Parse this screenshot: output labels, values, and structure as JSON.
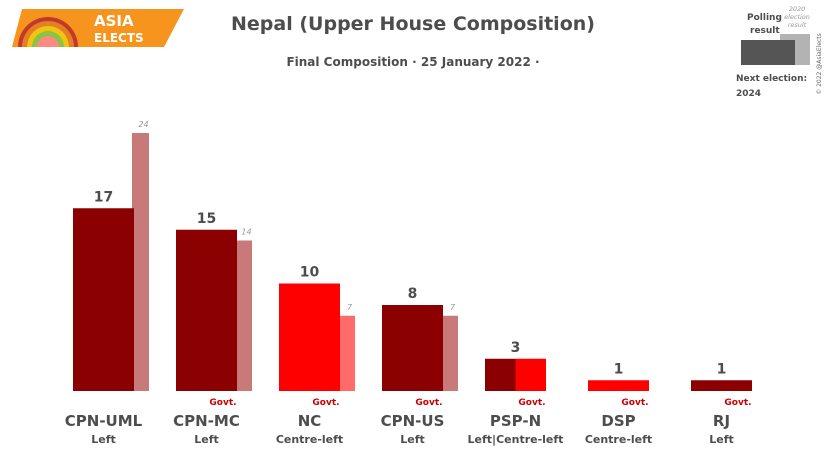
{
  "branding": {
    "line1": "ASIA",
    "line2": "ELECTS",
    "copyright": "© 2022 @AsiaElects"
  },
  "legend": {
    "polling": "Polling",
    "result": "result",
    "prev_line1": "2020",
    "prev_line2": "election",
    "prev_line3": "result",
    "next_election_label": "Next election:",
    "next_election_year": "2024"
  },
  "colors": {
    "left": "#8b0000",
    "centre_left": "#ff0000",
    "left_prev": "#c87a7a",
    "centre_left_prev": "#ff6b6b",
    "govt": "#cc0000",
    "logo_orange": "#f7941d",
    "legend_dark": "#555555",
    "legend_light": "#b3b3b3"
  },
  "chart_data": {
    "type": "bar",
    "title": "Nepal (Upper House Composition)",
    "subtitle": "Final Composition · 25 January 2022 ·",
    "xlabel": "",
    "ylabel": "",
    "ylim": [
      0,
      24
    ],
    "grid": false,
    "legend": "top-right",
    "categories": [
      "CPN-UML",
      "CPN-MC",
      "NC",
      "CPN-US",
      "PSP-N",
      "DSP",
      "RJ"
    ],
    "ideologies": [
      "Left",
      "Left",
      "Centre-left",
      "Left",
      "Left|Centre-left",
      "Centre-left",
      "Left"
    ],
    "series": [
      {
        "name": "Final composition",
        "values": [
          17,
          15,
          10,
          8,
          3,
          1,
          1
        ]
      },
      {
        "name": "2020 election result",
        "values": [
          24,
          14,
          7,
          7,
          null,
          null,
          null
        ]
      }
    ],
    "government": [
      false,
      true,
      true,
      true,
      true,
      true,
      true
    ],
    "govt_label": "Govt."
  }
}
